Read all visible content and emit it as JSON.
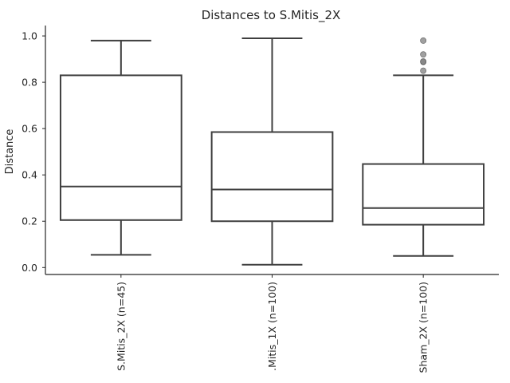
{
  "chart_data": {
    "type": "box",
    "title": "Distances to S.Mitis_2X",
    "xlabel": "",
    "ylabel": "Distance",
    "ylim": [
      -0.03,
      1.045
    ],
    "yticks": [
      0.0,
      0.2,
      0.4,
      0.6,
      0.8,
      1.0
    ],
    "ytick_labels": [
      "0.0",
      "0.2",
      "0.4",
      "0.6",
      "0.8",
      "1.0"
    ],
    "grid": false,
    "categories": [
      "S.Mitis_2X (n=45)",
      ".Mitis_1X (n=100)",
      "Sham_2X (n=100)"
    ],
    "boxes": [
      {
        "whisker_low": 0.055,
        "q1": 0.205,
        "median": 0.35,
        "q3": 0.83,
        "whisker_high": 0.98,
        "outliers": []
      },
      {
        "whisker_low": 0.012,
        "q1": 0.2,
        "median": 0.337,
        "q3": 0.585,
        "whisker_high": 0.99,
        "outliers": []
      },
      {
        "whisker_low": 0.05,
        "q1": 0.185,
        "median": 0.257,
        "q3": 0.447,
        "whisker_high": 0.83,
        "outliers": [
          0.85,
          0.888,
          0.89,
          0.92,
          0.98
        ]
      }
    ],
    "colors": {
      "box_edge": "#3f3f3f",
      "box_fill": "#ffffff",
      "outlier": "#808080",
      "axis": "#262626"
    }
  }
}
